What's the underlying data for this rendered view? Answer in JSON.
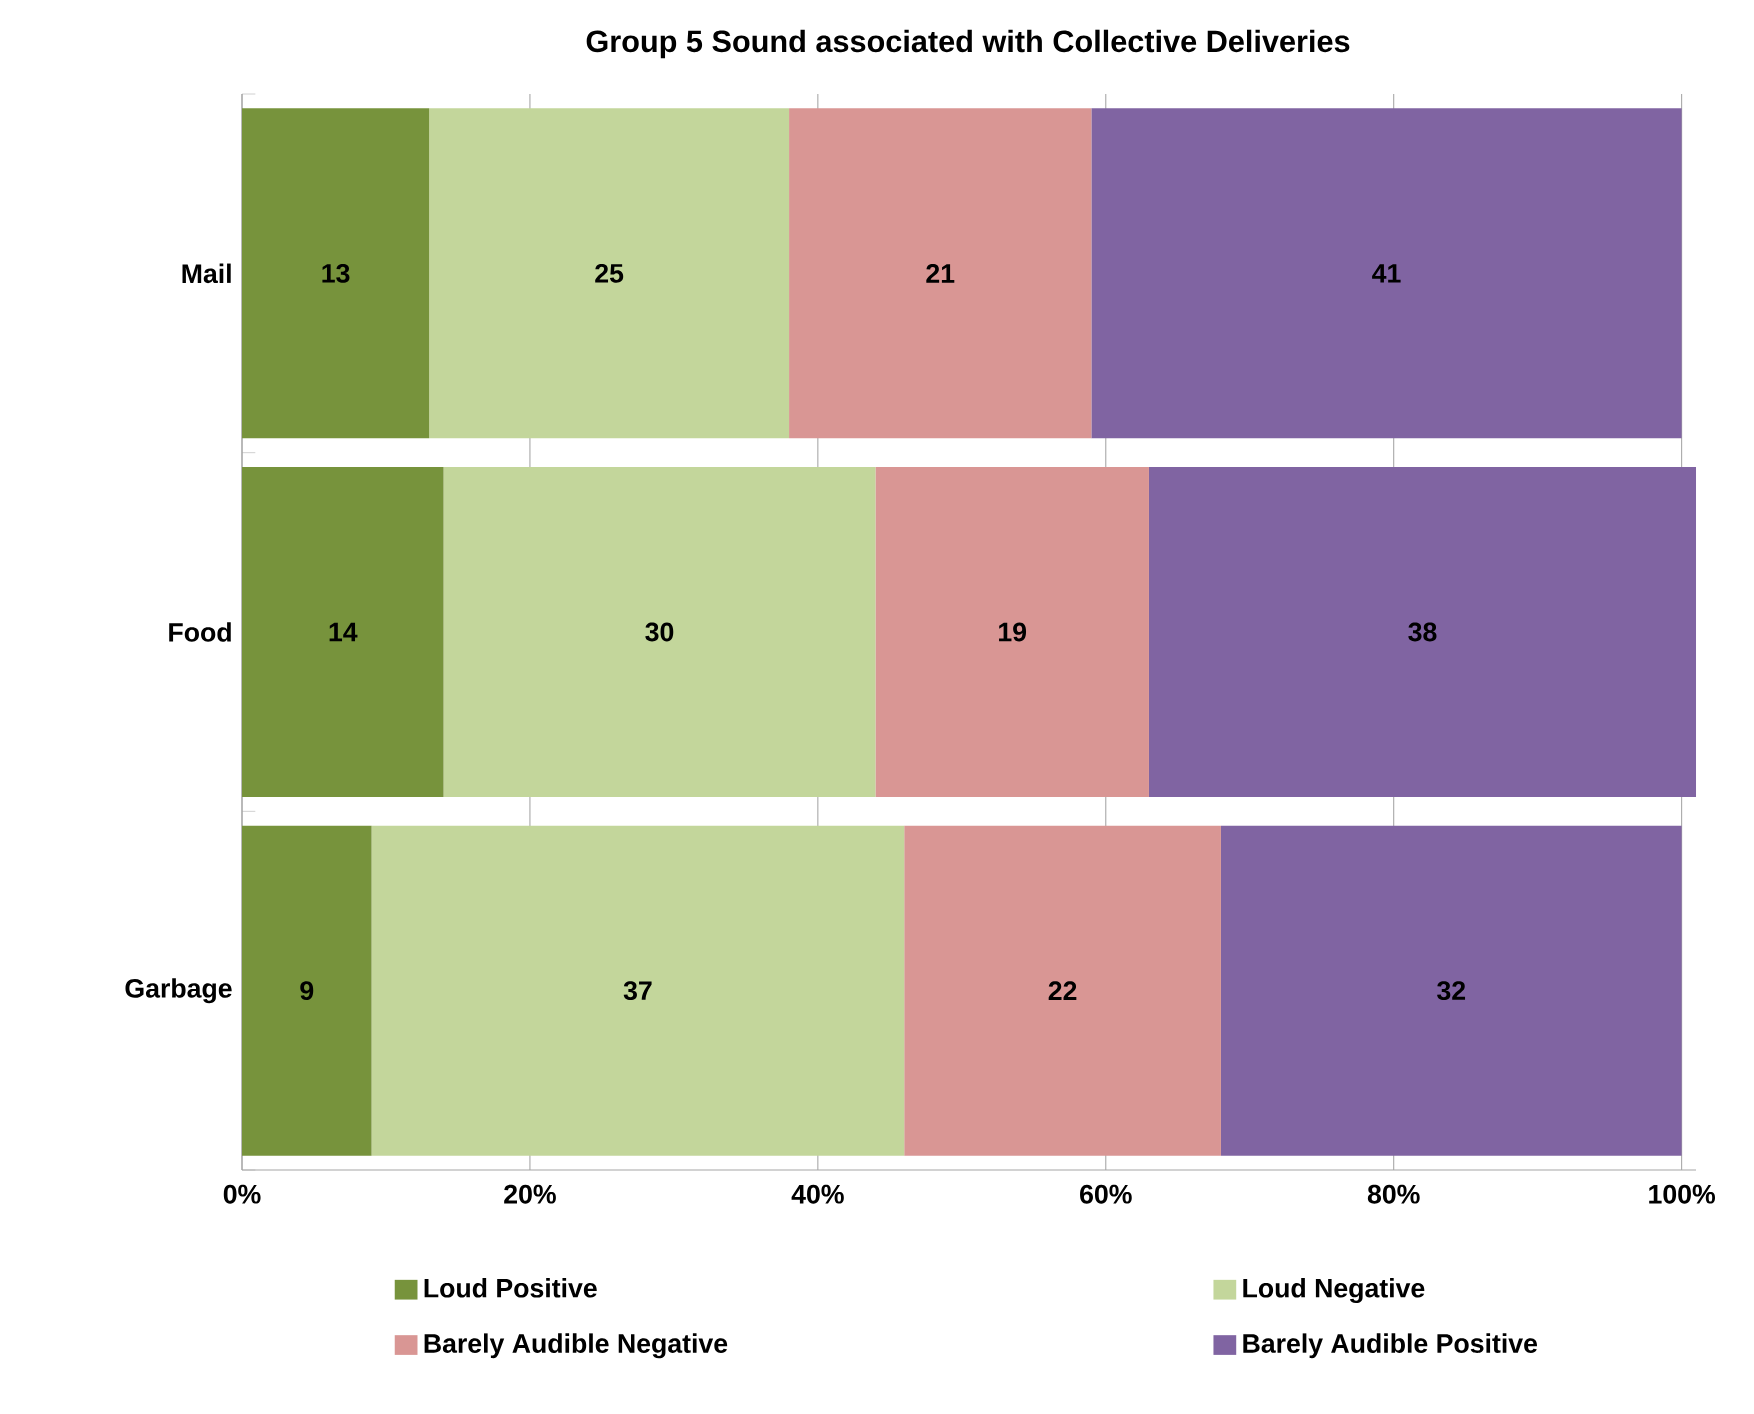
{
  "chart_data": {
    "type": "bar",
    "orientation": "horizontal",
    "stacked": true,
    "title": "Group 5  Sound associated with Collective Deliveries",
    "categories": [
      "Mail",
      "Food",
      "Garbage"
    ],
    "series": [
      {
        "name": "Loud Positive",
        "color": "#77933c",
        "values": [
          13,
          14,
          9
        ]
      },
      {
        "name": "Loud Negative",
        "color": "#c3d69b",
        "values": [
          25,
          30,
          37
        ]
      },
      {
        "name": "Barely Audible  Negative",
        "color": "#d99694",
        "values": [
          21,
          19,
          22
        ]
      },
      {
        "name": "Barely Audible  Positive",
        "color": "#8064a2",
        "values": [
          41,
          38,
          32
        ]
      }
    ],
    "xlim": [
      0,
      101
    ],
    "xticks": [
      {
        "value": 0,
        "label": "0%"
      },
      {
        "value": 20,
        "label": "20%"
      },
      {
        "value": 40,
        "label": "40%"
      },
      {
        "value": 60,
        "label": "60%"
      },
      {
        "value": 80,
        "label": "80%"
      },
      {
        "value": 100,
        "label": "100%"
      }
    ],
    "grid": "x",
    "legend": "bottom",
    "data_labels": true
  }
}
